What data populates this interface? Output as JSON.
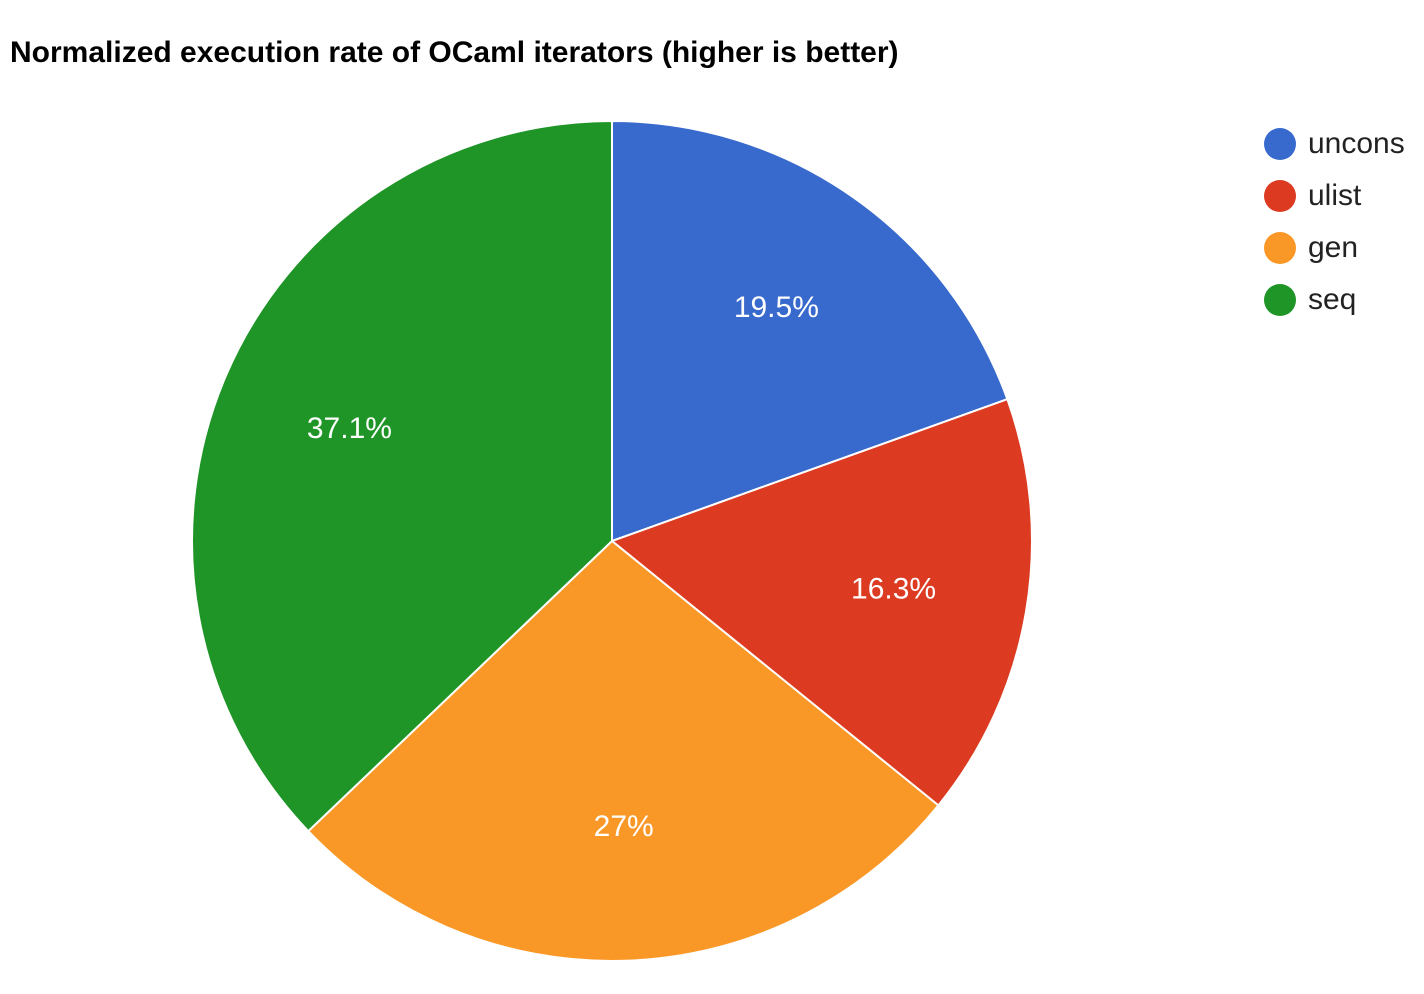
{
  "chart_data": {
    "type": "pie",
    "title": "Normalized execution rate of OCaml iterators (higher is better)",
    "slices": [
      {
        "name": "uncons",
        "value": 19.5,
        "label": "19.5%",
        "color": "#3869cc"
      },
      {
        "name": "ulist",
        "value": 16.3,
        "label": "16.3%",
        "color": "#dc3b22"
      },
      {
        "name": "gen",
        "value": 27.0,
        "label": "27%",
        "color": "#fa9827"
      },
      {
        "name": "seq",
        "value": 37.1,
        "label": "37.1%",
        "color": "#1f9527"
      }
    ],
    "start_angle": "12 o'clock",
    "direction": "clockwise",
    "legend_position": "right"
  }
}
